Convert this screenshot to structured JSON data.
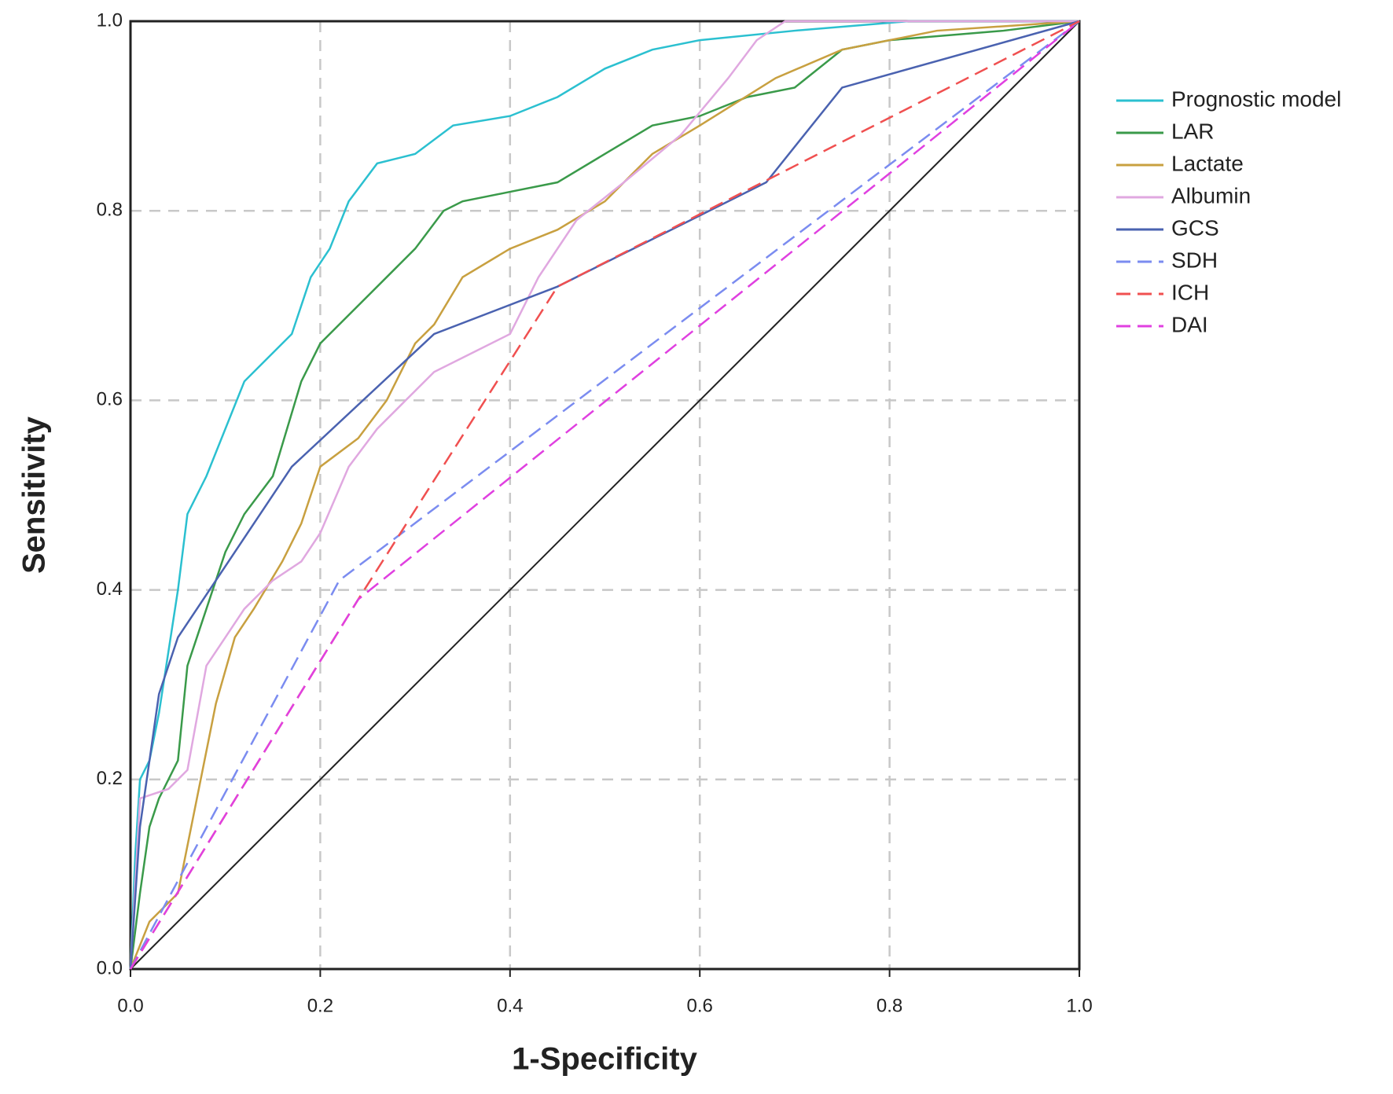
{
  "chart_data": {
    "type": "line",
    "xlabel": "1-Specificity",
    "ylabel": "Sensitivity",
    "xlim": [
      0,
      1
    ],
    "ylim": [
      0,
      1
    ],
    "xticks": [
      {
        "value": 0,
        "label": "0.0"
      },
      0.2,
      0.4,
      0.6,
      0.8,
      {
        "value": 1,
        "label": "1.0"
      }
    ],
    "yticks": [
      {
        "value": 0,
        "label": "0.0"
      },
      0.2,
      0.4,
      0.6,
      0.8,
      {
        "value": 1,
        "label": "1.0"
      }
    ],
    "grid": true,
    "reference_line": true,
    "legend": "right",
    "series": [
      {
        "name": "Prognostic model",
        "color": "#2bc0d0",
        "dashed": false,
        "x": [
          0,
          0.005,
          0.01,
          0.02,
          0.03,
          0.05,
          0.06,
          0.08,
          0.1,
          0.12,
          0.14,
          0.17,
          0.19,
          0.21,
          0.23,
          0.26,
          0.3,
          0.34,
          0.4,
          0.45,
          0.5,
          0.55,
          0.6,
          0.7,
          0.82,
          1.0
        ],
        "values": [
          0,
          0.12,
          0.2,
          0.22,
          0.27,
          0.4,
          0.48,
          0.52,
          0.57,
          0.62,
          0.64,
          0.67,
          0.73,
          0.76,
          0.81,
          0.85,
          0.86,
          0.89,
          0.9,
          0.92,
          0.95,
          0.97,
          0.98,
          0.99,
          1.0,
          1.0
        ]
      },
      {
        "name": "LAR",
        "color": "#3a9a4a",
        "dashed": false,
        "x": [
          0,
          0.01,
          0.02,
          0.03,
          0.05,
          0.06,
          0.08,
          0.1,
          0.12,
          0.15,
          0.18,
          0.2,
          0.22,
          0.25,
          0.28,
          0.3,
          0.33,
          0.35,
          0.4,
          0.45,
          0.5,
          0.55,
          0.6,
          0.65,
          0.7,
          0.75,
          0.8,
          0.92,
          1.0
        ],
        "values": [
          0,
          0.08,
          0.15,
          0.18,
          0.22,
          0.32,
          0.38,
          0.44,
          0.48,
          0.52,
          0.62,
          0.66,
          0.68,
          0.71,
          0.74,
          0.76,
          0.8,
          0.81,
          0.82,
          0.83,
          0.86,
          0.89,
          0.9,
          0.92,
          0.93,
          0.97,
          0.98,
          0.99,
          1.0
        ]
      },
      {
        "name": "Lactate",
        "color": "#c8a040",
        "dashed": false,
        "x": [
          0,
          0.02,
          0.05,
          0.07,
          0.09,
          0.11,
          0.13,
          0.16,
          0.18,
          0.2,
          0.24,
          0.27,
          0.3,
          0.32,
          0.35,
          0.4,
          0.45,
          0.5,
          0.55,
          0.6,
          0.68,
          0.75,
          0.85,
          1.0
        ],
        "values": [
          0,
          0.05,
          0.08,
          0.18,
          0.28,
          0.35,
          0.38,
          0.43,
          0.47,
          0.53,
          0.56,
          0.6,
          0.66,
          0.68,
          0.73,
          0.76,
          0.78,
          0.81,
          0.86,
          0.89,
          0.94,
          0.97,
          0.99,
          1.0
        ]
      },
      {
        "name": "Albumin",
        "color": "#e0a8e0",
        "dashed": false,
        "x": [
          0,
          0.01,
          0.04,
          0.06,
          0.08,
          0.1,
          0.12,
          0.15,
          0.18,
          0.2,
          0.23,
          0.26,
          0.29,
          0.32,
          0.36,
          0.4,
          0.43,
          0.47,
          0.52,
          0.58,
          0.63,
          0.66,
          0.69,
          1.0
        ],
        "values": [
          0,
          0.18,
          0.19,
          0.21,
          0.32,
          0.35,
          0.38,
          0.41,
          0.43,
          0.46,
          0.53,
          0.57,
          0.6,
          0.63,
          0.65,
          0.67,
          0.73,
          0.79,
          0.83,
          0.88,
          0.94,
          0.98,
          1.0,
          1.0
        ]
      },
      {
        "name": "GCS",
        "color": "#4a62b0",
        "dashed": false,
        "x": [
          0,
          0.01,
          0.03,
          0.05,
          0.17,
          0.32,
          0.45,
          0.67,
          0.75,
          1.0
        ],
        "values": [
          0,
          0.15,
          0.29,
          0.35,
          0.53,
          0.67,
          0.72,
          0.83,
          0.93,
          1.0
        ]
      },
      {
        "name": "SDH",
        "color": "#7b8cf0",
        "dashed": true,
        "x": [
          0,
          0.22,
          1.0
        ],
        "values": [
          0,
          0.41,
          1.0
        ]
      },
      {
        "name": "ICH",
        "color": "#f05050",
        "dashed": true,
        "x": [
          0,
          0.24,
          0.45,
          1.0
        ],
        "values": [
          0,
          0.39,
          0.72,
          1.0
        ]
      },
      {
        "name": "DAI",
        "color": "#e040e0",
        "dashed": true,
        "x": [
          0,
          0.24,
          1.0
        ],
        "values": [
          0,
          0.39,
          1.0
        ]
      }
    ]
  }
}
